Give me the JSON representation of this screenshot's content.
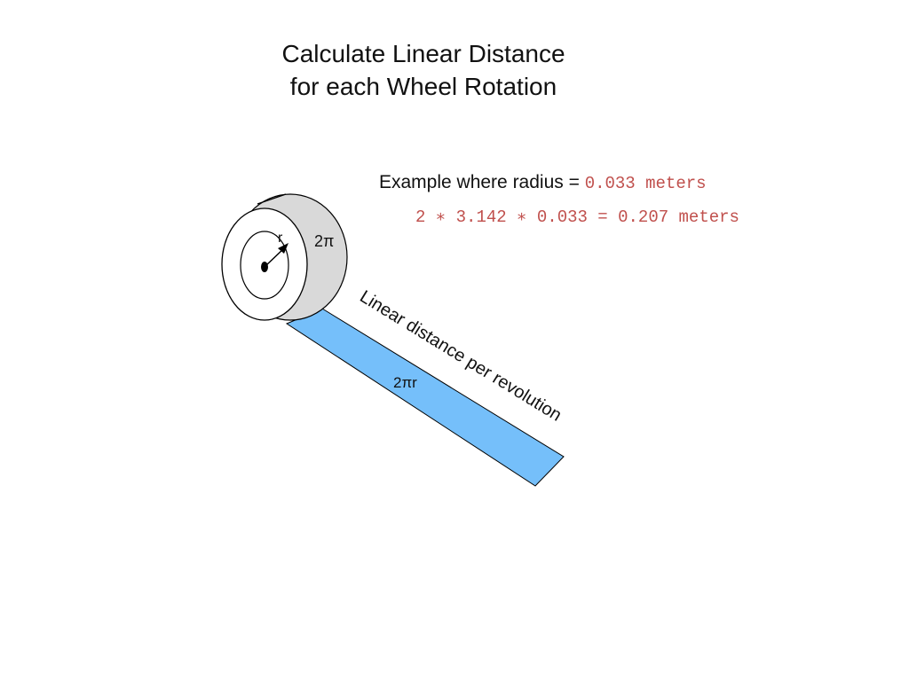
{
  "title": {
    "line1": "Calculate Linear Distance",
    "line2": "for each Wheel Rotation"
  },
  "example": {
    "label": "Example where radius = ",
    "radius_value": "0.033 meters",
    "calculation": "2 ∗ 3.142 ∗ 0.033 =  0.207 meters"
  },
  "diagram": {
    "radius_label": "r",
    "side_label": "2π",
    "strip_label": "2πr",
    "strip_caption": "Linear distance per revolution",
    "colors": {
      "wheel_side": "#d9d9d9",
      "wheel_face": "#ffffff",
      "strip": "#75bffa",
      "outline": "#000000",
      "code_text": "#c0504d"
    }
  }
}
